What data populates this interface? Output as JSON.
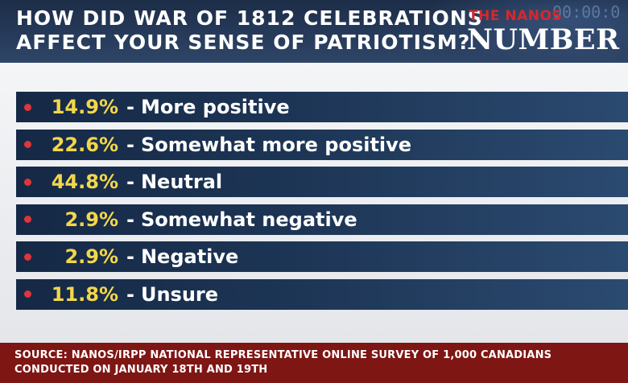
{
  "header": {
    "question_line1": "HOW DID WAR OF 1812 CELEBRATIONS",
    "question_line2": "AFFECT YOUR SENSE OF PATRIOTISM?",
    "brand_small": "THE",
    "brand_small_name": "NANOS",
    "brand_main": "NUMBER",
    "clock": "00:00:0"
  },
  "chart_data": {
    "type": "table",
    "title": "HOW DID WAR OF 1812 CELEBRATIONS AFFECT YOUR SENSE OF PATRIOTISM?",
    "categories": [
      "More positive",
      "Somewhat more positive",
      "Neutral",
      "Somewhat negative",
      "Negative",
      "Unsure"
    ],
    "values": [
      14.9,
      22.6,
      44.8,
      2.9,
      2.9,
      11.8
    ],
    "value_labels": [
      "14.9%",
      "22.6%",
      "44.8%",
      "2.9%",
      "2.9%",
      "11.8%"
    ],
    "separator": "-"
  },
  "footer": {
    "line1": "SOURCE: NANOS/IRPP NATIONAL REPRESENTATIVE ONLINE SURVEY OF 1,000 CANADIANS",
    "line2": "CONDUCTED ON JANUARY 18TH AND 19TH"
  },
  "colors": {
    "header_bg": "#263a5a",
    "row_bg": "#1d3555",
    "value_yellow": "#f3d74a",
    "bullet_red": "#e0353a",
    "footer_bg": "#7e1614"
  }
}
